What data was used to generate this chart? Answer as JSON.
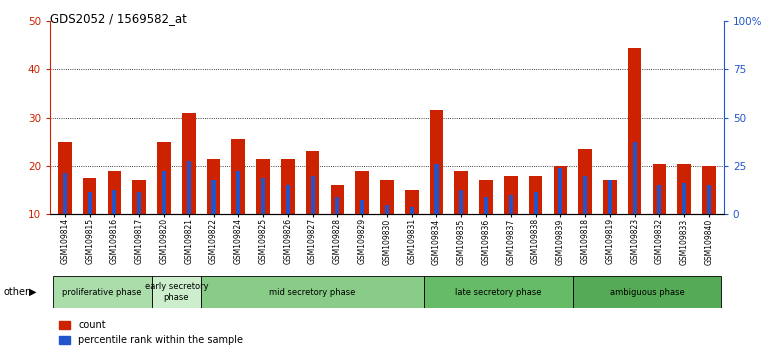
{
  "title": "GDS2052 / 1569582_at",
  "samples": [
    "GSM109814",
    "GSM109815",
    "GSM109816",
    "GSM109817",
    "GSM109820",
    "GSM109821",
    "GSM109822",
    "GSM109824",
    "GSM109825",
    "GSM109826",
    "GSM109827",
    "GSM109828",
    "GSM109829",
    "GSM109830",
    "GSM109831",
    "GSM109834",
    "GSM109835",
    "GSM109836",
    "GSM109837",
    "GSM109838",
    "GSM109839",
    "GSM109818",
    "GSM109819",
    "GSM109823",
    "GSM109832",
    "GSM109833",
    "GSM109840"
  ],
  "count_values": [
    25,
    17.5,
    19,
    17,
    25,
    31,
    21.5,
    25.5,
    21.5,
    21.5,
    23,
    16,
    19,
    17,
    15,
    31.5,
    19,
    17,
    18,
    18,
    20,
    23.5,
    17,
    44.5,
    20.5,
    20.5,
    20
  ],
  "percentile_values": [
    18.5,
    14.5,
    15,
    14.5,
    19,
    21,
    17,
    19,
    17.5,
    16,
    18,
    13.5,
    13,
    12,
    11.5,
    20.5,
    15,
    13.5,
    14,
    14.5,
    19.5,
    18,
    17,
    25,
    16,
    16.5,
    16
  ],
  "phases": [
    {
      "label": "proliferative phase",
      "start": 0,
      "end": 4,
      "color": "#aaddaa"
    },
    {
      "label": "early secretory\nphase",
      "start": 4,
      "end": 6,
      "color": "#cceecc"
    },
    {
      "label": "mid secretory phase",
      "start": 6,
      "end": 15,
      "color": "#88cc88"
    },
    {
      "label": "late secretory phase",
      "start": 15,
      "end": 21,
      "color": "#66bb66"
    },
    {
      "label": "ambiguous phase",
      "start": 21,
      "end": 27,
      "color": "#55aa55"
    }
  ],
  "ylim_left": [
    10,
    50
  ],
  "ylim_right": [
    0,
    100
  ],
  "yticks_left": [
    10,
    20,
    30,
    40,
    50
  ],
  "yticks_right": [
    0,
    25,
    50,
    75,
    100
  ],
  "ytick_labels_right": [
    "0",
    "25",
    "50",
    "75",
    "100%"
  ],
  "bar_color_red": "#cc2200",
  "bar_color_blue": "#2255cc",
  "bg_color": "#ffffff",
  "bar_width": 0.55,
  "other_label": "other"
}
